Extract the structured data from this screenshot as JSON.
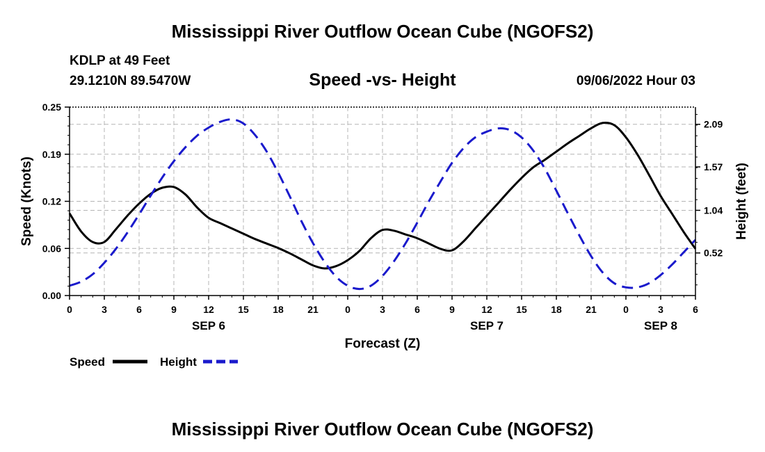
{
  "main_title": "Mississippi River Outflow Ocean Cube (NGOFS2)",
  "station_line": "KDLP at 49 Feet",
  "coords_line": "29.1210N  89.5470W",
  "chart_title": "Speed -vs- Height",
  "run_time": "09/06/2022 Hour 03",
  "footer_title": "Mississippi River Outflow Ocean Cube (NGOFS2)",
  "colors": {
    "speed": "#000000",
    "height": "#1a1acc"
  },
  "chart_data": {
    "type": "line",
    "title": "Speed -vs- Height",
    "xlabel": "Forecast (Z)",
    "ylabel": "Speed (Knots)",
    "y2label": "Height (feet)",
    "xlim": [
      0,
      54
    ],
    "ylim": [
      0,
      0.25
    ],
    "y2lim": [
      0,
      2.3
    ],
    "x_ticks": [
      "0",
      "3",
      "6",
      "9",
      "12",
      "15",
      "18",
      "21",
      "0",
      "3",
      "6",
      "9",
      "12",
      "15",
      "18",
      "21",
      "0",
      "3",
      "6"
    ],
    "y_ticks": [
      "0.00",
      "0.06",
      "0.12",
      "0.19",
      "0.25"
    ],
    "y_tick_values": [
      0.0,
      0.0625,
      0.125,
      0.1875,
      0.25
    ],
    "y2_ticks": [
      "0.52",
      "1.04",
      "1.57",
      "2.09"
    ],
    "y2_tick_values": [
      0.52,
      1.04,
      1.57,
      2.09
    ],
    "date_labels": [
      {
        "label": "SEP 6",
        "x": 12
      },
      {
        "label": "SEP 7",
        "x": 36
      },
      {
        "label": "SEP 8",
        "x": 51
      }
    ],
    "grid": true,
    "legend_position": "bottom-left",
    "series": [
      {
        "name": "Speed",
        "axis": "left",
        "style": "solid",
        "x": [
          0,
          1,
          2,
          3,
          4,
          5,
          6,
          7,
          8,
          9,
          10,
          11,
          12,
          13,
          14,
          15,
          16,
          17,
          18,
          19,
          20,
          21,
          22,
          23,
          24,
          25,
          26,
          27,
          28,
          29,
          30,
          31,
          32,
          33,
          34,
          35,
          36,
          37,
          38,
          39,
          40,
          41,
          42,
          43,
          44,
          45,
          46,
          47,
          48,
          49,
          50,
          51,
          52,
          53,
          54
        ],
        "values": [
          0.109,
          0.085,
          0.071,
          0.071,
          0.088,
          0.106,
          0.122,
          0.135,
          0.143,
          0.144,
          0.134,
          0.117,
          0.103,
          0.096,
          0.089,
          0.082,
          0.075,
          0.069,
          0.063,
          0.056,
          0.048,
          0.04,
          0.036,
          0.039,
          0.047,
          0.059,
          0.076,
          0.087,
          0.086,
          0.081,
          0.076,
          0.069,
          0.062,
          0.06,
          0.072,
          0.089,
          0.106,
          0.123,
          0.14,
          0.156,
          0.17,
          0.18,
          0.191,
          0.202,
          0.212,
          0.222,
          0.229,
          0.226,
          0.21,
          0.187,
          0.16,
          0.132,
          0.108,
          0.084,
          0.062
        ]
      },
      {
        "name": "Height",
        "axis": "right",
        "style": "dashed",
        "x": [
          0,
          1,
          2,
          3,
          4,
          5,
          6,
          7,
          8,
          9,
          10,
          11,
          12,
          13,
          14,
          15,
          16,
          17,
          18,
          19,
          20,
          21,
          22,
          23,
          24,
          25,
          26,
          27,
          28,
          29,
          30,
          31,
          32,
          33,
          34,
          35,
          36,
          37,
          38,
          39,
          40,
          41,
          42,
          43,
          44,
          45,
          46,
          47,
          48,
          49,
          50,
          51,
          52,
          53,
          54
        ],
        "values": [
          0.12,
          0.17,
          0.26,
          0.4,
          0.57,
          0.77,
          0.99,
          1.22,
          1.44,
          1.64,
          1.81,
          1.95,
          2.05,
          2.12,
          2.15,
          2.1,
          1.96,
          1.76,
          1.5,
          1.21,
          0.91,
          0.64,
          0.41,
          0.23,
          0.12,
          0.08,
          0.12,
          0.24,
          0.42,
          0.64,
          0.89,
          1.15,
          1.39,
          1.62,
          1.8,
          1.93,
          2.0,
          2.04,
          2.02,
          1.93,
          1.77,
          1.55,
          1.28,
          1.0,
          0.73,
          0.48,
          0.28,
          0.15,
          0.1,
          0.1,
          0.15,
          0.25,
          0.38,
          0.53,
          0.68
        ]
      }
    ]
  }
}
